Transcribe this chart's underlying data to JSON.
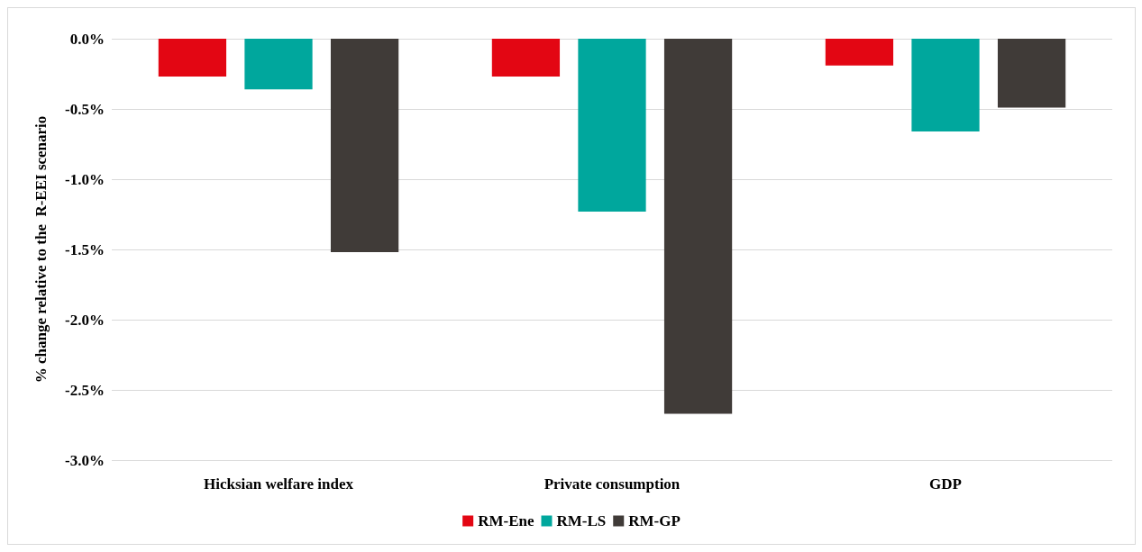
{
  "chart_data": {
    "type": "bar",
    "ylabel": "% change relative to the  R-EEI scenario",
    "categories": [
      "Hicksian welfare index",
      "Private consumption",
      "GDP"
    ],
    "series": [
      {
        "name": "RM-Ene",
        "color": "#e30613",
        "values": [
          -0.27,
          -0.27,
          -0.19
        ]
      },
      {
        "name": "RM-LS",
        "color": "#00a79d",
        "values": [
          -0.36,
          -1.23,
          -0.66
        ]
      },
      {
        "name": "RM-GP",
        "color": "#403b38",
        "values": [
          -1.52,
          -2.67,
          -0.49
        ]
      }
    ],
    "ylim": [
      -3,
      0
    ],
    "yticks": [
      {
        "value": -3,
        "label": "-3.0%"
      },
      {
        "value": -2.5,
        "label": "-2.5%"
      },
      {
        "value": -2,
        "label": "-2.0%"
      },
      {
        "value": -1.5,
        "label": "-1.5%"
      },
      {
        "value": -1,
        "label": "-1.0%"
      },
      {
        "value": -0.5,
        "label": "-0.5%"
      },
      {
        "value": 0,
        "label": "0.0%"
      }
    ],
    "grid": "y",
    "legend": "bottom"
  }
}
